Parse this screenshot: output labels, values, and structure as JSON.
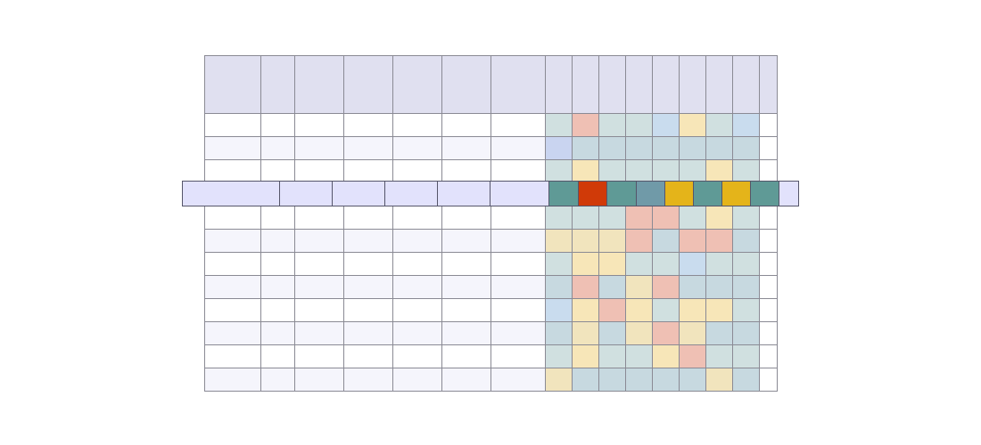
{
  "colors": {
    "header_bg": "#e0e0f0",
    "row_even_bg": "#f5f5fc",
    "row_odd_bg": "#ffffff",
    "highlight_text_bg": "#e2e2fc",
    "grid_border": "#8a8a94",
    "heat": {
      "teal": "#d0e0e0",
      "blue": "#c9dcee",
      "salmon": "#efc0b4",
      "yellow": "#f7e6b8",
      "sand": "#f1e4bd",
      "lavender": "#c9d4f0",
      "steel": "#c7d9e0"
    },
    "strong": {
      "teal": "#5f9a96",
      "red": "#d03a08",
      "steel": "#709aa8",
      "gold": "#e4b41a"
    }
  },
  "header": {
    "columns": [
      "",
      "",
      "",
      "",
      "",
      "",
      ""
    ],
    "heat_columns": [
      "",
      "",
      "",
      "",
      "",
      "",
      "",
      "",
      ""
    ]
  },
  "rows": [
    {
      "cells": [
        "",
        "",
        "",
        "",
        "",
        "",
        ""
      ],
      "heat": [
        "teal",
        "salmon",
        "teal",
        "teal",
        "blue",
        "yellow",
        "teal",
        "blue",
        "white"
      ]
    },
    {
      "cells": [
        "",
        "",
        "",
        "",
        "",
        "",
        ""
      ],
      "heat": [
        "lavender",
        "steel",
        "steel",
        "steel",
        "steel",
        "steel",
        "steel",
        "steel",
        "white"
      ]
    },
    {
      "cells": [
        "",
        "",
        "",
        "",
        "",
        "",
        ""
      ],
      "heat": [
        "teal",
        "yellow",
        "teal",
        "teal",
        "teal",
        "teal",
        "yellow",
        "teal",
        "white"
      ]
    },
    {
      "cells": [
        "",
        "",
        "",
        "",
        "",
        "",
        ""
      ],
      "heat": [
        "teal",
        "teal",
        "teal",
        "salmon",
        "salmon",
        "teal",
        "yellow",
        "teal",
        "white"
      ]
    },
    {
      "cells": [
        "",
        "",
        "",
        "",
        "",
        "",
        ""
      ],
      "heat": [
        "sand",
        "sand",
        "sand",
        "salmon",
        "steel",
        "salmon",
        "salmon",
        "steel",
        "white"
      ]
    },
    {
      "cells": [
        "",
        "",
        "",
        "",
        "",
        "",
        ""
      ],
      "heat": [
        "teal",
        "yellow",
        "yellow",
        "teal",
        "teal",
        "blue",
        "teal",
        "teal",
        "white"
      ]
    },
    {
      "cells": [
        "",
        "",
        "",
        "",
        "",
        "",
        ""
      ],
      "heat": [
        "steel",
        "salmon",
        "steel",
        "sand",
        "salmon",
        "steel",
        "steel",
        "steel",
        "white"
      ]
    },
    {
      "cells": [
        "",
        "",
        "",
        "",
        "",
        "",
        ""
      ],
      "heat": [
        "blue",
        "yellow",
        "salmon",
        "yellow",
        "teal",
        "yellow",
        "yellow",
        "teal",
        "white"
      ]
    },
    {
      "cells": [
        "",
        "",
        "",
        "",
        "",
        "",
        ""
      ],
      "heat": [
        "steel",
        "sand",
        "steel",
        "sand",
        "salmon",
        "sand",
        "steel",
        "steel",
        "white"
      ]
    },
    {
      "cells": [
        "",
        "",
        "",
        "",
        "",
        "",
        ""
      ],
      "heat": [
        "teal",
        "yellow",
        "teal",
        "teal",
        "yellow",
        "salmon",
        "teal",
        "teal",
        "white"
      ]
    },
    {
      "cells": [
        "",
        "",
        "",
        "",
        "",
        "",
        ""
      ],
      "heat": [
        "sand",
        "steel",
        "steel",
        "steel",
        "steel",
        "steel",
        "sand",
        "steel",
        "white"
      ]
    }
  ],
  "highlight_row": {
    "cells": [
      "",
      "",
      "",
      "",
      "",
      ""
    ],
    "heat": [
      "teal",
      "red",
      "teal",
      "steel",
      "gold",
      "teal",
      "gold",
      "teal",
      "light"
    ]
  }
}
